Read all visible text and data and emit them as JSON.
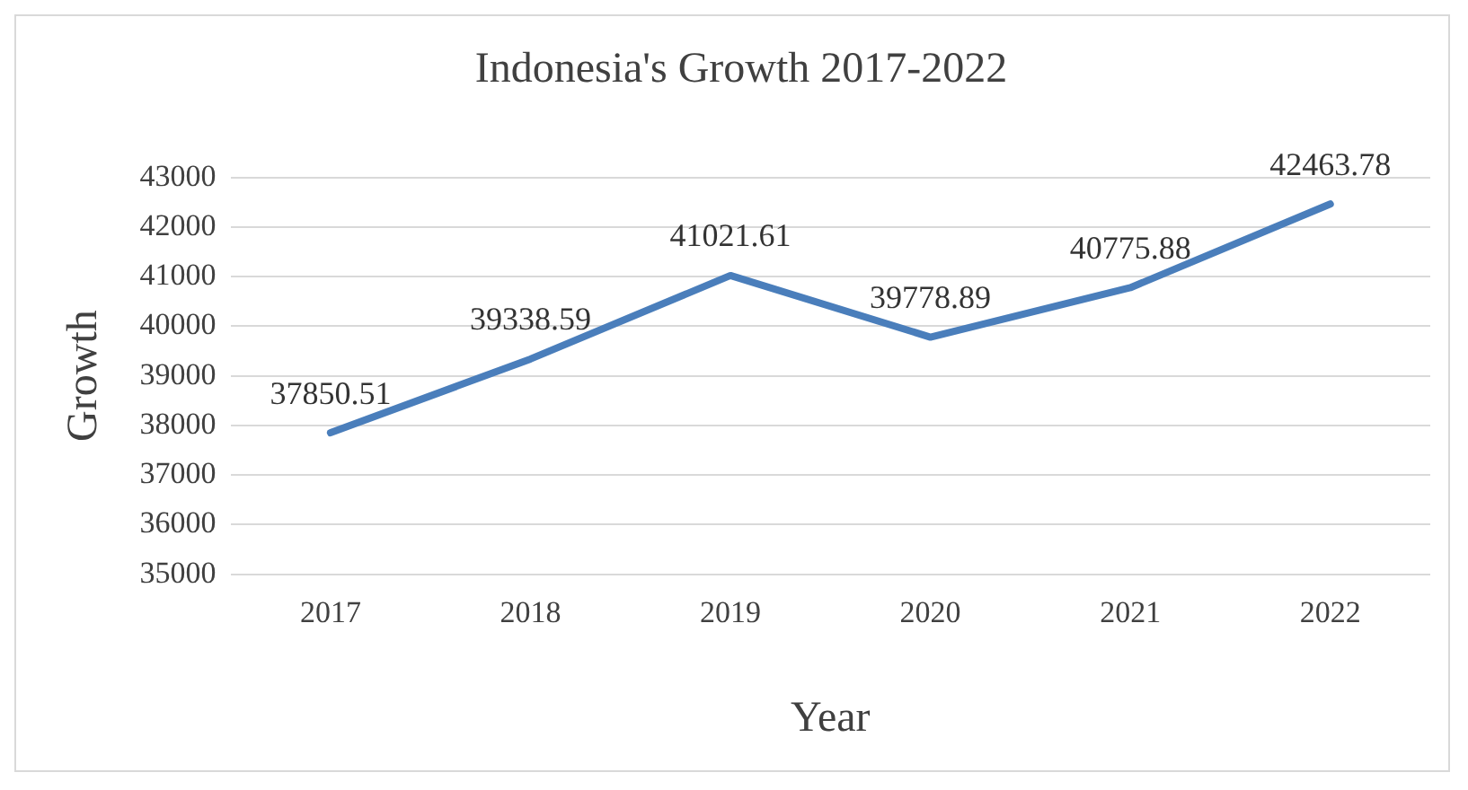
{
  "chart_data": {
    "type": "line",
    "title": "Indonesia's Growth 2017-2022",
    "xlabel": "Year",
    "ylabel": "Growth",
    "categories": [
      "2017",
      "2018",
      "2019",
      "2020",
      "2021",
      "2022"
    ],
    "series": [
      {
        "color": "#4a7ebb",
        "values": [
          37850.51,
          39338.59,
          41021.61,
          39778.89,
          40775.88,
          42463.78
        ]
      }
    ],
    "ylim": [
      35000,
      43000
    ],
    "yticks": [
      35000,
      36000,
      37000,
      38000,
      39000,
      40000,
      41000,
      42000,
      43000
    ],
    "grid": "y",
    "legend": false,
    "marker": "none",
    "line_style": "solid",
    "data_labels": true
  }
}
